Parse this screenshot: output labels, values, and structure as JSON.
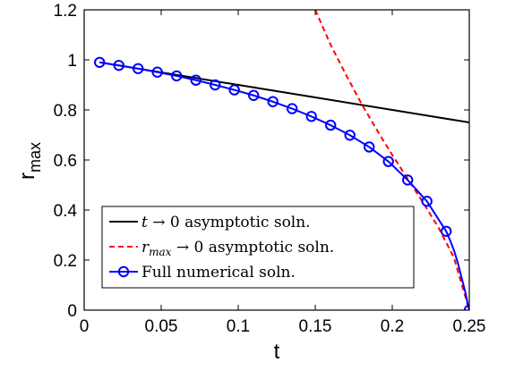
{
  "chart_data": {
    "type": "line",
    "xlabel": "t",
    "ylabel": "r",
    "ylabel_subscript": "max",
    "xlim": [
      0,
      0.25
    ],
    "ylim": [
      0,
      1.2
    ],
    "x_ticks": [
      "0",
      "0.05",
      "0.1",
      "0.15",
      "0.2",
      "0.25"
    ],
    "y_ticks": [
      "0",
      "0.2",
      "0.4",
      "0.6",
      "0.8",
      "1",
      "1.2"
    ],
    "grid": false,
    "legend_position": "bottom-left",
    "legend": [
      {
        "parts": [
          {
            "text": "t",
            "italic": true
          },
          {
            "text": " → 0 asymptotic soln.",
            "italic": false
          }
        ],
        "color": "#000000",
        "style": "solid",
        "marker": "none"
      },
      {
        "parts": [
          {
            "text": "r",
            "italic": true
          },
          {
            "text": "max",
            "italic": true,
            "sub": true
          },
          {
            "text": " → 0 asymptotic soln.",
            "italic": false
          }
        ],
        "color": "#ff0000",
        "style": "dashed",
        "marker": "none"
      },
      {
        "parts": [
          {
            "text": "Full numerical soln.",
            "italic": false
          }
        ],
        "color": "#0000ff",
        "style": "solid",
        "marker": "circle"
      }
    ],
    "series": [
      {
        "color": "#000000",
        "style": "solid",
        "x": [
          0.01,
          0.05,
          0.1,
          0.15,
          0.2,
          0.25
        ],
        "y": [
          0.99,
          0.95,
          0.9,
          0.85,
          0.8,
          0.75
        ]
      },
      {
        "color": "#ff0000",
        "style": "dashed",
        "x": [
          0.15,
          0.16,
          0.17,
          0.18,
          0.19,
          0.2,
          0.21,
          0.22,
          0.23,
          0.24,
          0.25
        ],
        "y": [
          1.2,
          1.06,
          0.94,
          0.825,
          0.72,
          0.62,
          0.525,
          0.43,
          0.33,
          0.21,
          0.0
        ]
      },
      {
        "color": "#0000ff",
        "style": "solid",
        "marker": "circle",
        "x": [
          0.01,
          0.0225,
          0.035,
          0.0475,
          0.06,
          0.0725,
          0.085,
          0.0975,
          0.11,
          0.1225,
          0.135,
          0.1475,
          0.16,
          0.1725,
          0.185,
          0.1975,
          0.21,
          0.2225,
          0.235,
          0.2375,
          0.24,
          0.2425,
          0.245,
          0.2475,
          0.2488,
          0.25
        ],
        "y": [
          0.99,
          0.978,
          0.965,
          0.951,
          0.936,
          0.919,
          0.9,
          0.88,
          0.858,
          0.833,
          0.805,
          0.774,
          0.739,
          0.699,
          0.652,
          0.594,
          0.52,
          0.435,
          0.315,
          0.28,
          0.24,
          0.19,
          0.13,
          0.07,
          0.03,
          0.0
        ],
        "marker_x": [
          0.01,
          0.0225,
          0.035,
          0.0475,
          0.06,
          0.0725,
          0.085,
          0.0975,
          0.11,
          0.1225,
          0.135,
          0.1475,
          0.16,
          0.1725,
          0.185,
          0.1975,
          0.21,
          0.2225,
          0.235,
          0.25
        ],
        "marker_y": [
          0.99,
          0.978,
          0.965,
          0.951,
          0.936,
          0.919,
          0.9,
          0.88,
          0.858,
          0.833,
          0.805,
          0.774,
          0.739,
          0.699,
          0.652,
          0.594,
          0.52,
          0.435,
          0.315,
          0.0
        ]
      }
    ]
  }
}
